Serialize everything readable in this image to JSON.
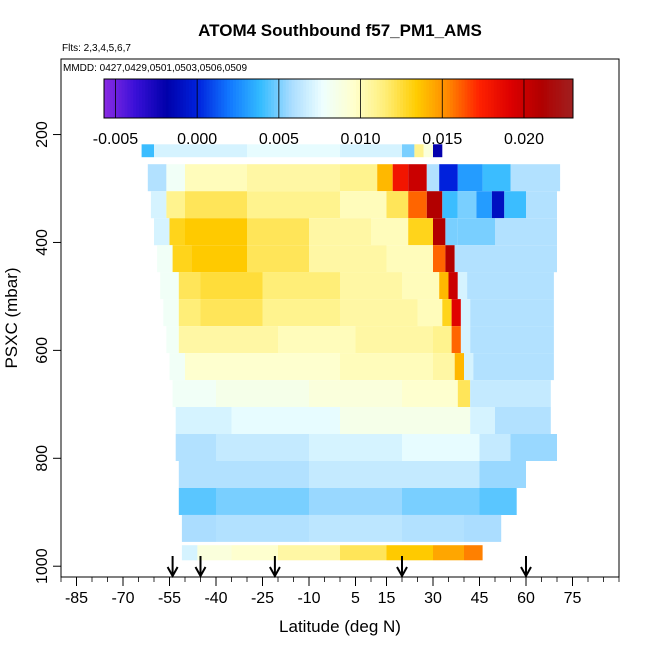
{
  "chart_data": {
    "type": "heatmap",
    "title": "ATOM4 Southbound f57_PM1_AMS",
    "flights_label": "Flts: 2,3,4,5,6,7",
    "dates_label": "MMDD: 0427,0429,0501,0503,0506,0509",
    "xlabel": "Latitude (deg N)",
    "ylabel": "PSXC (mbar)",
    "xlim": [
      -90,
      90
    ],
    "ylim": [
      1020,
      60
    ],
    "y_inverted": true,
    "x_ticks": [
      -85,
      -70,
      -55,
      -40,
      -25,
      -10,
      5,
      15,
      30,
      45,
      60,
      75
    ],
    "x_minor_step": 5,
    "y_ticks": [
      200,
      400,
      600,
      800,
      1000
    ],
    "colorbar": {
      "ticks": [
        -0.005,
        0.0,
        0.005,
        0.01,
        0.015,
        0.02
      ],
      "tick_labels": [
        "-0.005",
        "0.000",
        "0.005",
        "0.010",
        "0.015",
        "0.020"
      ],
      "range": [
        -0.0057,
        0.023
      ],
      "colors": [
        "#8a2be2",
        "#3a10d8",
        "#0000aa",
        "#0022dd",
        "#1177ff",
        "#33bbff",
        "#aaddff",
        "#eeffff",
        "#ffffcc",
        "#ffee77",
        "#ffcc00",
        "#ff8800",
        "#ff2200",
        "#dd0000",
        "#b00000",
        "#a02020"
      ]
    },
    "flight_marker_latitudes": [
      -54,
      -45,
      -21,
      20,
      60
    ],
    "bins": [
      {
        "p": 230,
        "lat": [
          -64,
          27
        ],
        "segs": [
          [
            -64,
            -60,
            0.004
          ],
          [
            -60,
            -30,
            0.007
          ],
          [
            -30,
            0,
            0.0075
          ],
          [
            0,
            20,
            0.007
          ],
          [
            20,
            24,
            0.005
          ],
          [
            24,
            27,
            0.011
          ]
        ]
      },
      {
        "p": 230,
        "lat": [
          27,
          33
        ],
        "segs": [
          [
            27,
            30,
            0.009
          ],
          [
            30,
            33,
            -0.002
          ]
        ]
      },
      {
        "p": 280,
        "lat": [
          -62,
          71
        ],
        "segs": [
          [
            -62,
            -56,
            0.006
          ],
          [
            -56,
            -50,
            0.008
          ],
          [
            -50,
            -30,
            0.01
          ],
          [
            -30,
            0,
            0.0105
          ],
          [
            0,
            12,
            0.011
          ],
          [
            12,
            17,
            0.014
          ],
          [
            17,
            22,
            0.018
          ],
          [
            22,
            28,
            0.02
          ],
          [
            28,
            32,
            0.006
          ],
          [
            32,
            38,
            0.0
          ],
          [
            38,
            46,
            0.003
          ],
          [
            46,
            55,
            0.004
          ],
          [
            55,
            71,
            0.006
          ]
        ]
      },
      {
        "p": 330,
        "lat": [
          -61,
          70
        ],
        "segs": [
          [
            -61,
            -56,
            0.007
          ],
          [
            -56,
            -50,
            0.011
          ],
          [
            -50,
            -30,
            0.012
          ],
          [
            -30,
            0,
            0.011
          ],
          [
            0,
            15,
            0.01
          ],
          [
            15,
            22,
            0.012
          ],
          [
            22,
            28,
            0.016
          ],
          [
            28,
            33,
            0.021
          ],
          [
            33,
            38,
            0.004
          ],
          [
            38,
            44,
            0.005
          ],
          [
            44,
            49,
            0.003
          ],
          [
            49,
            53,
            -0.001
          ],
          [
            53,
            60,
            0.004
          ],
          [
            60,
            70,
            0.006
          ]
        ]
      },
      {
        "p": 380,
        "lat": [
          -60,
          70
        ],
        "segs": [
          [
            -60,
            -55,
            0.007
          ],
          [
            -55,
            -50,
            0.013
          ],
          [
            -50,
            -30,
            0.0135
          ],
          [
            -30,
            -10,
            0.012
          ],
          [
            -10,
            10,
            0.0105
          ],
          [
            10,
            22,
            0.01
          ],
          [
            22,
            30,
            0.013
          ],
          [
            30,
            34,
            0.021
          ],
          [
            34,
            38,
            0.005
          ],
          [
            38,
            50,
            0.005
          ],
          [
            50,
            70,
            0.006
          ]
        ]
      },
      {
        "p": 430,
        "lat": [
          -59,
          70
        ],
        "segs": [
          [
            -59,
            -54,
            0.008
          ],
          [
            -54,
            -48,
            0.013
          ],
          [
            -48,
            -30,
            0.0135
          ],
          [
            -30,
            -10,
            0.012
          ],
          [
            -10,
            15,
            0.0105
          ],
          [
            15,
            30,
            0.01
          ],
          [
            30,
            34,
            0.016
          ],
          [
            34,
            37,
            0.021
          ],
          [
            37,
            40,
            0.006
          ],
          [
            40,
            70,
            0.006
          ]
        ]
      },
      {
        "p": 480,
        "lat": [
          -58,
          69
        ],
        "segs": [
          [
            -58,
            -52,
            0.008
          ],
          [
            -52,
            -45,
            0.012
          ],
          [
            -45,
            -25,
            0.0125
          ],
          [
            -25,
            0,
            0.0115
          ],
          [
            0,
            20,
            0.0105
          ],
          [
            20,
            32,
            0.01
          ],
          [
            32,
            35,
            0.014
          ],
          [
            35,
            38,
            0.02
          ],
          [
            38,
            41,
            0.007
          ],
          [
            41,
            69,
            0.006
          ]
        ]
      },
      {
        "p": 530,
        "lat": [
          -57,
          69
        ],
        "segs": [
          [
            -57,
            -52,
            0.008
          ],
          [
            -52,
            -45,
            0.0115
          ],
          [
            -45,
            -25,
            0.012
          ],
          [
            -25,
            0,
            0.011
          ],
          [
            0,
            25,
            0.0105
          ],
          [
            25,
            33,
            0.01
          ],
          [
            33,
            36,
            0.013
          ],
          [
            36,
            39,
            0.019
          ],
          [
            39,
            42,
            0.007
          ],
          [
            42,
            69,
            0.006
          ]
        ]
      },
      {
        "p": 580,
        "lat": [
          -56,
          69
        ],
        "segs": [
          [
            -56,
            -52,
            0.008
          ],
          [
            -52,
            -45,
            0.0105
          ],
          [
            -45,
            -20,
            0.0105
          ],
          [
            -20,
            5,
            0.01
          ],
          [
            5,
            30,
            0.0105
          ],
          [
            30,
            36,
            0.011
          ],
          [
            36,
            39,
            0.016
          ],
          [
            39,
            42,
            0.007
          ],
          [
            42,
            69,
            0.006
          ]
        ]
      },
      {
        "p": 630,
        "lat": [
          -55,
          69
        ],
        "segs": [
          [
            -55,
            -50,
            0.008
          ],
          [
            -50,
            -30,
            0.0095
          ],
          [
            -30,
            0,
            0.0095
          ],
          [
            0,
            30,
            0.01
          ],
          [
            30,
            37,
            0.0105
          ],
          [
            37,
            40,
            0.014
          ],
          [
            40,
            43,
            0.007
          ],
          [
            43,
            69,
            0.006
          ]
        ]
      },
      {
        "p": 680,
        "lat": [
          -54,
          68
        ],
        "segs": [
          [
            -54,
            -40,
            0.008
          ],
          [
            -40,
            -10,
            0.0085
          ],
          [
            -10,
            20,
            0.009
          ],
          [
            20,
            38,
            0.0095
          ],
          [
            38,
            42,
            0.012
          ],
          [
            42,
            68,
            0.0065
          ]
        ]
      },
      {
        "p": 730,
        "lat": [
          -53,
          68
        ],
        "segs": [
          [
            -53,
            -35,
            0.007
          ],
          [
            -35,
            0,
            0.0075
          ],
          [
            0,
            30,
            0.0085
          ],
          [
            30,
            42,
            0.0085
          ],
          [
            42,
            50,
            0.007
          ],
          [
            50,
            68,
            0.006
          ]
        ]
      },
      {
        "p": 780,
        "lat": [
          -53,
          70
        ],
        "segs": [
          [
            -53,
            -40,
            0.006
          ],
          [
            -40,
            -10,
            0.0065
          ],
          [
            -10,
            20,
            0.007
          ],
          [
            20,
            45,
            0.0075
          ],
          [
            45,
            55,
            0.0065
          ],
          [
            55,
            70,
            0.0055
          ]
        ]
      },
      {
        "p": 830,
        "lat": [
          -52,
          60
        ],
        "segs": [
          [
            -52,
            -40,
            0.006
          ],
          [
            -40,
            -10,
            0.006
          ],
          [
            -10,
            15,
            0.0065
          ],
          [
            15,
            45,
            0.0065
          ],
          [
            45,
            60,
            0.0055
          ]
        ]
      },
      {
        "p": 880,
        "lat": [
          -52,
          57
        ],
        "segs": [
          [
            -52,
            -40,
            0.0045
          ],
          [
            -40,
            -10,
            0.005
          ],
          [
            -10,
            20,
            0.0055
          ],
          [
            20,
            45,
            0.005
          ],
          [
            45,
            57,
            0.0045
          ]
        ]
      },
      {
        "p": 930,
        "lat": [
          -51,
          52
        ],
        "segs": [
          [
            -51,
            -40,
            0.0058
          ],
          [
            -40,
            -10,
            0.006
          ],
          [
            -10,
            20,
            0.0063
          ],
          [
            20,
            40,
            0.006
          ],
          [
            40,
            52,
            0.0058
          ]
        ]
      },
      {
        "p": 975,
        "lat": [
          -51,
          46
        ],
        "segs": [
          [
            -51,
            -46,
            0.007
          ],
          [
            -46,
            -35,
            0.009
          ],
          [
            -35,
            -20,
            0.0095
          ],
          [
            -20,
            0,
            0.0105
          ],
          [
            0,
            15,
            0.012
          ],
          [
            15,
            30,
            0.0135
          ],
          [
            30,
            40,
            0.0145
          ],
          [
            40,
            46,
            0.0155
          ]
        ]
      }
    ]
  }
}
